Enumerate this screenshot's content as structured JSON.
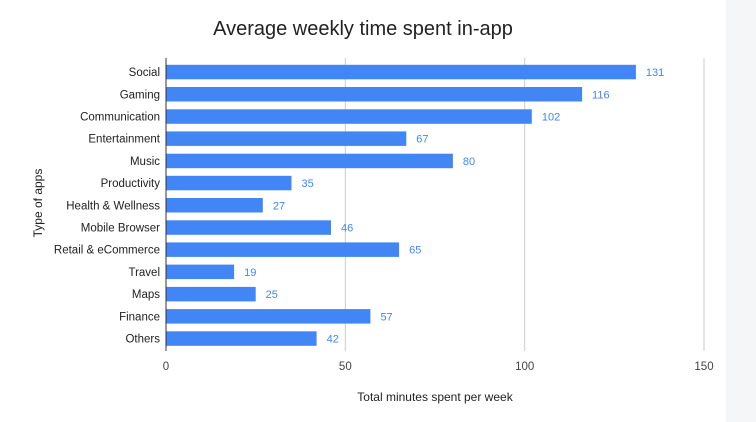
{
  "chart_data": {
    "type": "bar",
    "orientation": "horizontal",
    "title": "Average weekly time spent in-app",
    "xlabel": "Total minutes spent per week",
    "ylabel": "Type of apps",
    "categories": [
      "Social",
      "Gaming",
      "Communication",
      "Entertainment",
      "Music",
      "Productivity",
      "Health & Wellness",
      "Mobile Browser",
      "Retail & eCommerce",
      "Travel",
      "Maps",
      "Finance",
      "Others"
    ],
    "values": [
      131,
      116,
      102,
      67,
      80,
      35,
      27,
      46,
      65,
      19,
      25,
      57,
      42
    ],
    "xlim": [
      0,
      150
    ],
    "xticks": [
      0,
      50,
      100,
      150
    ],
    "grid": true,
    "legend": "none",
    "data_labels": true,
    "bar_color": "#4285f4",
    "label_color": "#4285f4"
  }
}
